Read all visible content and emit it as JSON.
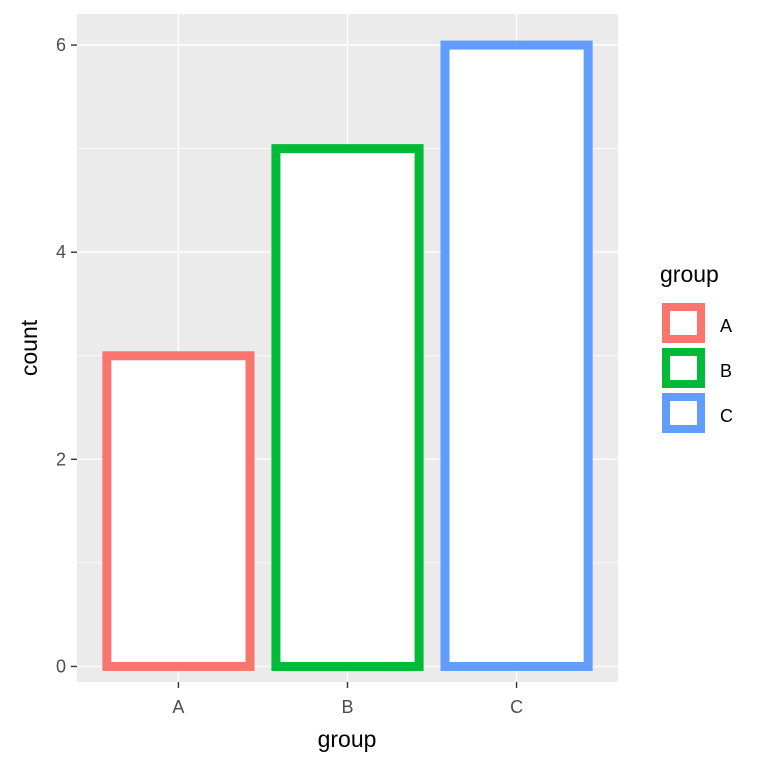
{
  "chart_data": {
    "type": "bar",
    "categories": [
      "A",
      "B",
      "C"
    ],
    "values": [
      3,
      5,
      6
    ],
    "colors": [
      "#F8766D",
      "#00BA38",
      "#619CFF"
    ],
    "fill": "#FFFFFF",
    "xlabel": "group",
    "ylabel": "count",
    "ylim": [
      -0.15,
      6.3
    ],
    "yticks": [
      0,
      2,
      4,
      6
    ],
    "yticks_minor": [
      1,
      3,
      5
    ],
    "grid": true,
    "panel_background": "#EBEBEB",
    "legend": {
      "title": "group",
      "position": "right",
      "entries": [
        "A",
        "B",
        "C"
      ]
    }
  }
}
